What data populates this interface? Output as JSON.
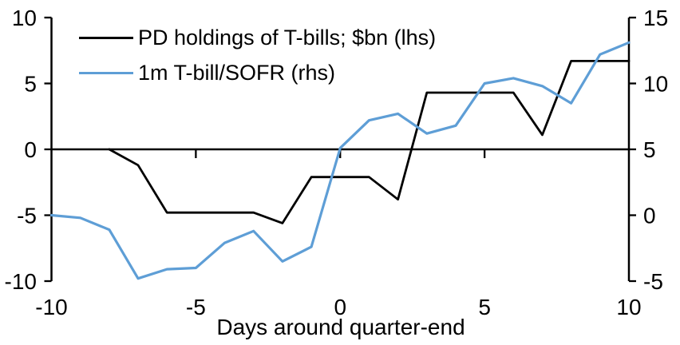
{
  "chart_data": {
    "type": "line",
    "title": "",
    "xlabel": "Days around quarter-end",
    "x_lim": [
      -10,
      10
    ],
    "x_ticks": [
      -10,
      -5,
      0,
      5,
      10
    ],
    "grid": false,
    "legend_position": "top-left",
    "background_color": "#ffffff",
    "axis_color": "#000000",
    "left_axis": {
      "lim": [
        -10,
        10
      ],
      "ticks": [
        10,
        5,
        0,
        -5,
        -10
      ]
    },
    "right_axis": {
      "lim": [
        -5,
        15
      ],
      "ticks": [
        15,
        10,
        5,
        0,
        -5
      ]
    },
    "series": [
      {
        "name": "PD holdings of T-bills; $bn (lhs)",
        "axis": "left",
        "color": "#000000",
        "x": [
          -8,
          -7,
          -6,
          -5,
          -4,
          -3,
          -2,
          -1,
          0,
          1,
          2,
          3,
          4,
          5,
          6,
          7,
          8,
          9,
          10
        ],
        "values": [
          0,
          -1.2,
          -4.8,
          -4.8,
          -4.8,
          -4.8,
          -5.6,
          -2.1,
          -2.1,
          -2.1,
          -3.8,
          4.3,
          4.3,
          4.3,
          4.3,
          1.1,
          6.7,
          6.7,
          6.7
        ]
      },
      {
        "name": "1m T-bill/SOFR (rhs)",
        "axis": "right",
        "color": "#5E9ED6",
        "x": [
          -10,
          -9,
          -8,
          -7,
          -6,
          -5,
          -4,
          -3,
          -2,
          -1,
          0,
          1,
          2,
          3,
          4,
          5,
          6,
          7,
          8,
          9,
          10
        ],
        "values": [
          0,
          -0.2,
          -1.1,
          -4.8,
          -4.1,
          -4.0,
          -2.1,
          -1.2,
          -3.5,
          -2.4,
          5.1,
          7.2,
          7.7,
          6.2,
          6.8,
          10.0,
          10.4,
          9.8,
          8.5,
          12.2,
          13.1
        ]
      }
    ]
  }
}
